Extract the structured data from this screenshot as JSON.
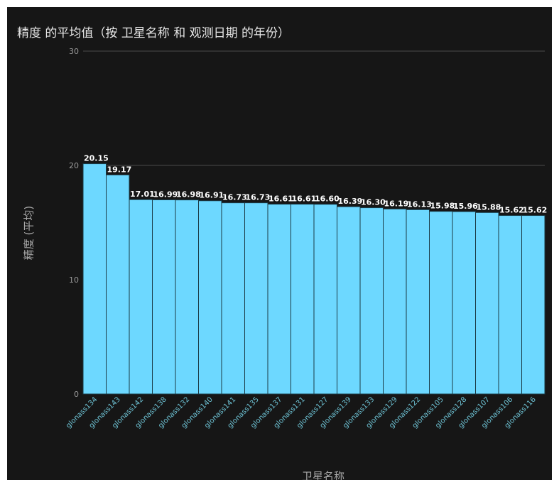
{
  "chart_data": {
    "type": "bar",
    "title": "精度 的平均值（按 卫星名称 和 观测日期 的年份）",
    "xlabel": "卫星名称",
    "ylabel": "精度 (平均)",
    "ylim": [
      0,
      30
    ],
    "yticks": [
      "0",
      "10",
      "20",
      "30"
    ],
    "grid": true,
    "bar_color": "#6dd8ff",
    "background_color": "#161616",
    "categories": [
      "glonass134",
      "glonass143",
      "glonass142",
      "glonass138",
      "glonass132",
      "glonass140",
      "glonass141",
      "glonass135",
      "glonass137",
      "glonass131",
      "glonass127",
      "glonass139",
      "glonass133",
      "glonass129",
      "glonass122",
      "glonass105",
      "glonass128",
      "glonass107",
      "glonass106",
      "glonass116"
    ],
    "values": [
      20.15,
      19.17,
      17.01,
      16.99,
      16.98,
      16.91,
      16.73,
      16.73,
      16.61,
      16.61,
      16.6,
      16.39,
      16.3,
      16.19,
      16.13,
      15.98,
      15.96,
      15.88,
      15.62,
      15.62
    ],
    "value_labels": [
      "20.15",
      "19.17",
      "17.01",
      "16.99",
      "16.98",
      "16.91",
      "16.73",
      "16.73",
      "16.61",
      "16.61",
      "16.60",
      "16.39",
      "16.30",
      "16.19",
      "16.13",
      "15.98",
      "15.96",
      "15.88",
      "15.62",
      "15.62"
    ]
  }
}
